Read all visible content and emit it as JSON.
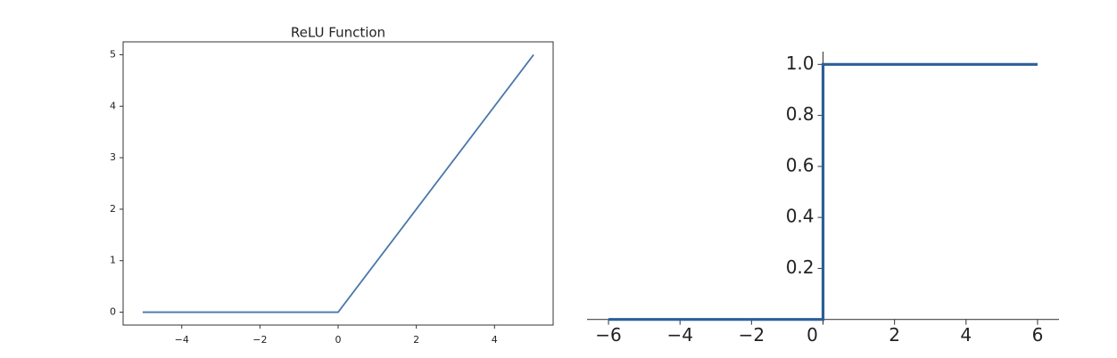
{
  "chart_data": [
    {
      "type": "line",
      "title": "ReLU Function",
      "spines": "box",
      "x": [
        -5,
        0,
        5
      ],
      "series": [
        {
          "color": "#4a78ab",
          "values": [
            0,
            0,
            5
          ]
        }
      ],
      "xlim": [
        -5.5,
        5.5
      ],
      "ylim": [
        -0.25,
        5.25
      ],
      "xticks": [
        {
          "value": -4,
          "label": "−4"
        },
        {
          "value": -2,
          "label": "−2"
        },
        0,
        2,
        4
      ],
      "yticks": [
        0,
        1,
        2,
        3,
        4,
        5
      ]
    },
    {
      "type": "line",
      "spines": "zero",
      "x": [
        -6,
        0,
        0,
        6
      ],
      "series": [
        {
          "color": "#2c5e99",
          "values": [
            0,
            0,
            1,
            1
          ]
        }
      ],
      "xlim": [
        -6.6,
        6.6
      ],
      "ylim": [
        -0.05,
        1.05
      ],
      "xticks": [
        {
          "value": -6,
          "label": "−6"
        },
        {
          "value": -4,
          "label": "−4"
        },
        {
          "value": -2,
          "label": "−2"
        },
        0,
        2,
        4,
        6
      ],
      "yticks": [
        {
          "value": 0.2,
          "label": "0.2"
        },
        {
          "value": 0.4,
          "label": "0.4"
        },
        {
          "value": 0.6,
          "label": "0.6"
        },
        {
          "value": 0.8,
          "label": "0.8"
        },
        {
          "value": 1,
          "label": "1.0"
        }
      ]
    }
  ]
}
